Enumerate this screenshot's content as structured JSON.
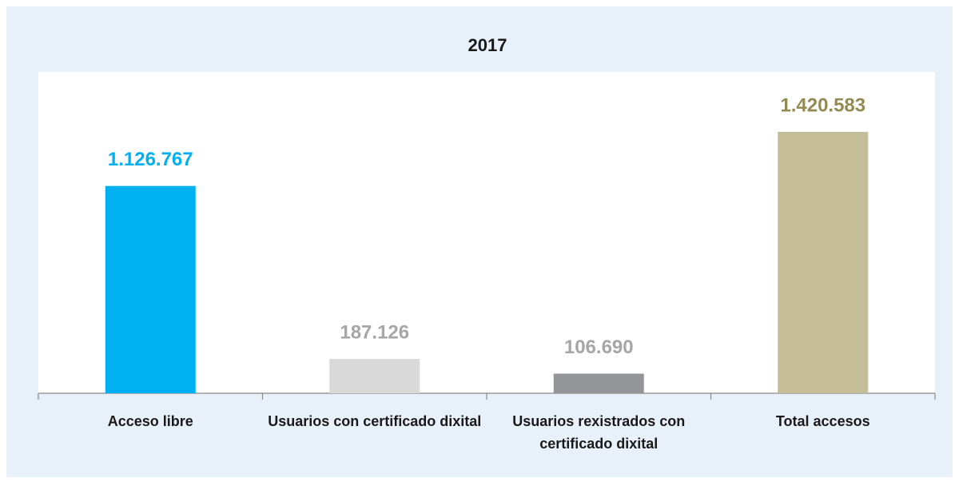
{
  "chart_data": {
    "type": "bar",
    "title": "2017",
    "categories": [
      "Acceso libre",
      "Usuarios con certificado dixital",
      "Usuarios rexistrados con certificado dixital",
      "Total accesos"
    ],
    "values": [
      1126767,
      187126,
      106690,
      1420583
    ],
    "value_labels": [
      "1.126.767",
      "187.126",
      "106.690",
      "1.420.583"
    ],
    "colors": [
      "#00b0f0",
      "#d9d9d9",
      "#939598",
      "#c4bd97"
    ],
    "value_label_colors": [
      "#00b0f0",
      "#a6a6a6",
      "#a6a6a6",
      "#948a54"
    ]
  }
}
